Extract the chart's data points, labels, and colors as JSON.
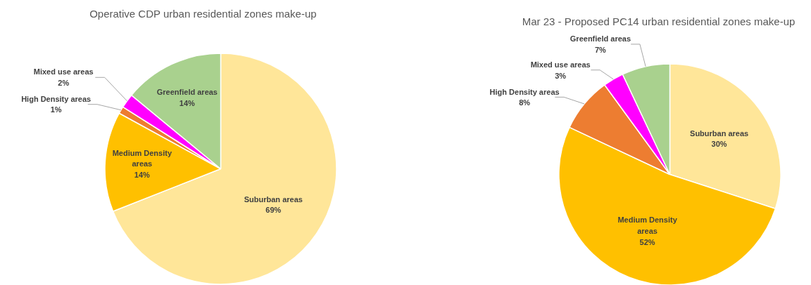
{
  "chart_data": [
    {
      "type": "pie",
      "title": "Operative CDP urban residential zones make-up",
      "categories": [
        "Suburban areas",
        "Medium Density areas",
        "High Density areas",
        "Mixed use areas",
        "Greenfield areas"
      ],
      "values": [
        69,
        14,
        1,
        2,
        14
      ],
      "value_labels": [
        "69%",
        "14%",
        "1%",
        "2%",
        "14%"
      ],
      "colors": [
        "#ffe699",
        "#ffc000",
        "#ed7d31",
        "#ff00ff",
        "#a9d18e"
      ]
    },
    {
      "type": "pie",
      "title": "Mar 23 - Proposed PC14 urban residential zones make-up",
      "categories": [
        "Suburban areas",
        "Medium Density areas",
        "High Density areas",
        "Mixed use areas",
        "Greenfield areas"
      ],
      "values": [
        30,
        52,
        8,
        3,
        7
      ],
      "value_labels": [
        "30%",
        "52%",
        "8%",
        "3%",
        "7%"
      ],
      "colors": [
        "#ffe699",
        "#ffc000",
        "#ed7d31",
        "#ff00ff",
        "#a9d18e"
      ]
    }
  ]
}
